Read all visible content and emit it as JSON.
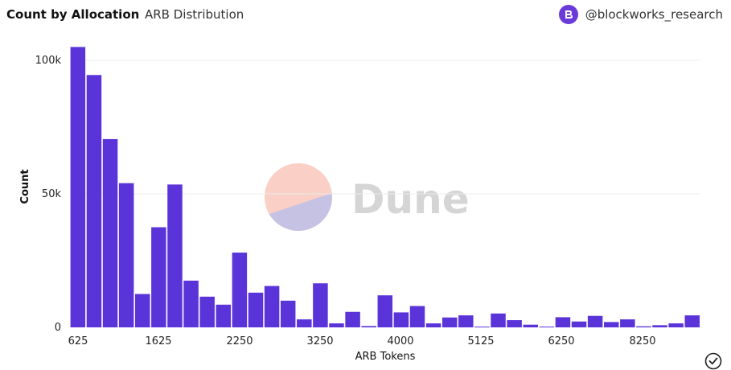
{
  "header": {
    "title": "Count by Allocation",
    "subtitle": "ARB Distribution",
    "credit": "@blockworks_research"
  },
  "watermark": {
    "text": "Dune"
  },
  "colors": {
    "bar": "#5b34d9",
    "watermark_top": "#f9cfc6",
    "watermark_bottom": "#c5c2e4",
    "watermark_text": "#d5d5d5"
  },
  "chart_data": {
    "type": "bar",
    "xlabel": "ARB Tokens",
    "ylabel": "Count",
    "x_ticks": [
      {
        "value": 625,
        "label": "625"
      },
      {
        "value": 1625,
        "label": "1625"
      },
      {
        "value": 2250,
        "label": "2250"
      },
      {
        "value": 3250,
        "label": "3250"
      },
      {
        "value": 4000,
        "label": "4000"
      },
      {
        "value": 5125,
        "label": "5125"
      },
      {
        "value": 6250,
        "label": "6250"
      },
      {
        "value": 8250,
        "label": "8250"
      }
    ],
    "y_ticks": [
      {
        "value": 0,
        "label": "0"
      },
      {
        "value": 50000,
        "label": "50k"
      },
      {
        "value": 100000,
        "label": "100k"
      }
    ],
    "ylim": [
      0,
      100000
    ],
    "grid": true,
    "values": [
      105000,
      94500,
      70500,
      54000,
      12500,
      37500,
      53500,
      17500,
      11500,
      8500,
      28000,
      13000,
      15500,
      10000,
      3000,
      16500,
      1500,
      5800,
      500,
      12000,
      5600,
      8000,
      1500,
      3700,
      4500,
      300,
      5200,
      2700,
      1000,
      300,
      3800,
      2200,
      4300,
      2000,
      3000,
      400,
      800,
      1500,
      4500
    ]
  }
}
